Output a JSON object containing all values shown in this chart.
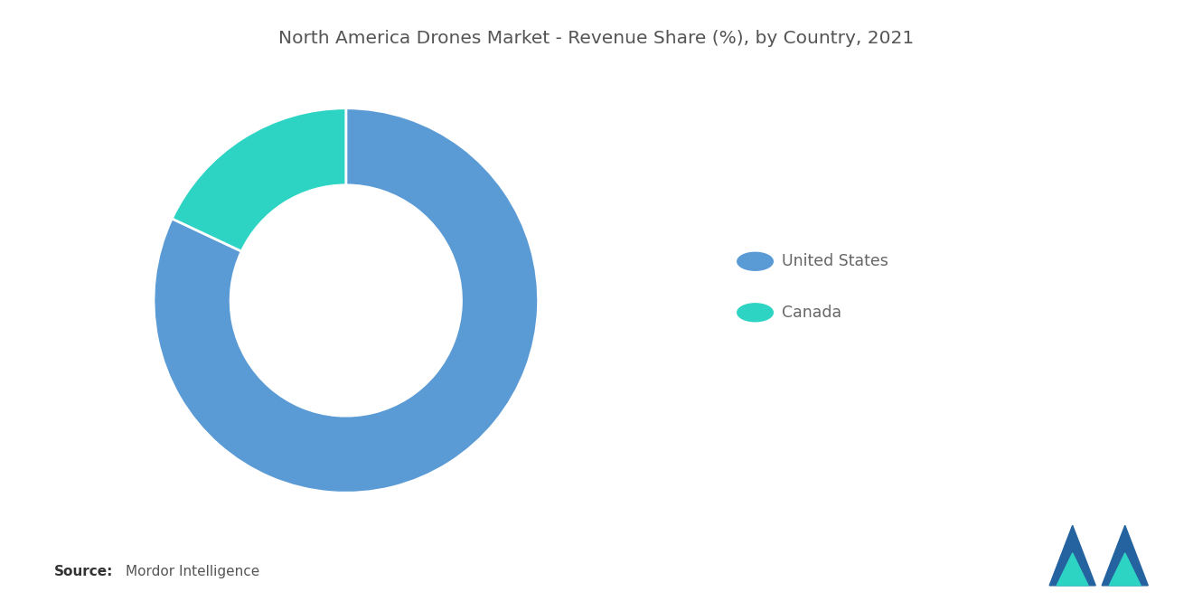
{
  "title": "North America Drones Market - Revenue Share (%), by Country, 2021",
  "title_fontsize": 14.5,
  "title_color": "#555555",
  "labels": [
    "United States",
    "Canada"
  ],
  "values": [
    82,
    18
  ],
  "colors": [
    "#5B9BD5",
    "#2ED4C3"
  ],
  "legend_labels": [
    "United States",
    "Canada"
  ],
  "legend_marker_colors": [
    "#5B9BD5",
    "#2ED4C3"
  ],
  "donut_width": 0.4,
  "source_bold": "Source:",
  "source_normal": "Mordor Intelligence",
  "background_color": "#FFFFFF",
  "start_angle": 90,
  "counterclock": false
}
